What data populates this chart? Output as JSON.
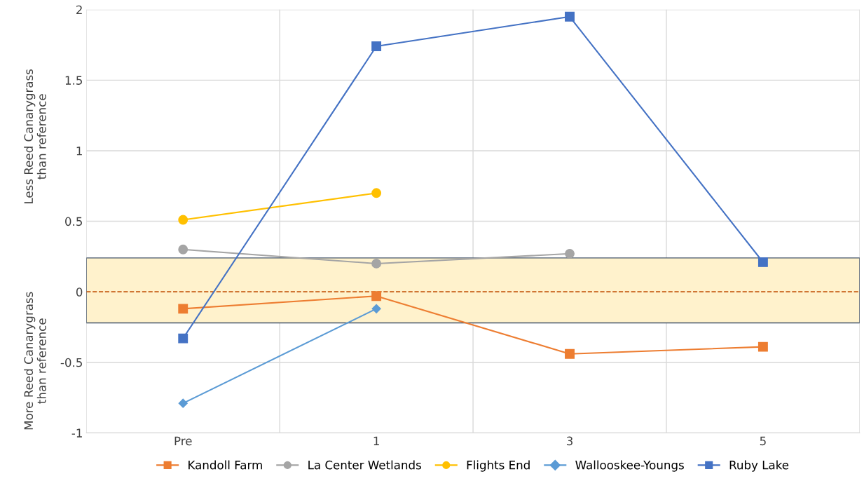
{
  "chart_data": {
    "type": "line",
    "ylabel": "Less Reed Canarygrass\nthan reference",
    "annotations": [
      "More Reed Canarygrass\nthan reference"
    ],
    "categories": [
      "Pre",
      "1",
      "3",
      "5"
    ],
    "series": [
      {
        "name": "Kandoll Farm",
        "color": "#ed7d31",
        "marker": "square",
        "values": [
          -0.12,
          -0.03,
          -0.44,
          -0.39
        ]
      },
      {
        "name": "La Center Wetlands",
        "color": "#a5a5a5",
        "marker": "circle",
        "values": [
          0.3,
          0.2,
          0.27,
          null
        ]
      },
      {
        "name": "Flights End",
        "color": "#ffc000",
        "marker": "circle",
        "values": [
          0.51,
          0.7,
          null,
          null
        ]
      },
      {
        "name": "Wallooskee-Youngs",
        "color": "#5b9bd5",
        "marker": "diamond",
        "values": [
          -0.79,
          -0.12,
          null,
          null
        ]
      },
      {
        "name": "Ruby Lake",
        "color": "#4472c4",
        "marker": "square",
        "values": [
          -0.33,
          1.74,
          1.95,
          0.21
        ]
      }
    ],
    "ylim": [
      -1,
      2
    ],
    "yticks": [
      -1,
      -0.5,
      0,
      0.5,
      1,
      1.5,
      2
    ],
    "ref_lines": [
      {
        "axis": "y",
        "value": 0,
        "color": "#c55a11",
        "line_style": "dashed"
      }
    ],
    "bands": [
      {
        "axis": "y",
        "from": -0.22,
        "to": 0.24,
        "color": "#fff2cc"
      }
    ],
    "grid": true,
    "legend": "bottom",
    "line_style": "solid"
  }
}
